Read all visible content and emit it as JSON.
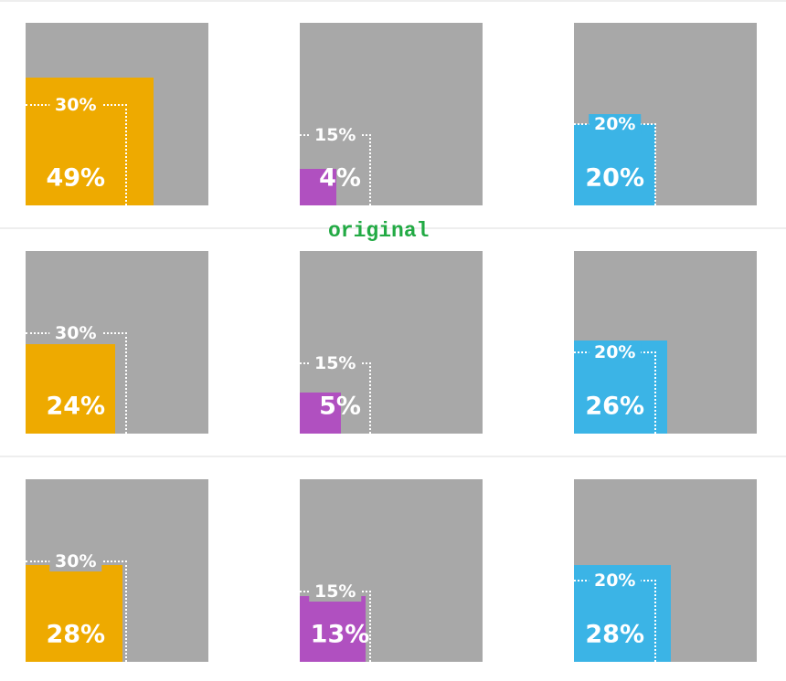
{
  "caption": "original",
  "colors": {
    "background_square": "#a8a8a8",
    "orange": "#eeaa00",
    "purple": "#b050c0",
    "blue": "#3bb4e6"
  },
  "chart_data": {
    "type": "area-square-comparison",
    "rows": [
      [
        {
          "value": 49,
          "reference": 30,
          "color": "#eeaa00",
          "value_label": "49%",
          "reference_label": "30%"
        },
        {
          "value": 4,
          "reference": 15,
          "color": "#b050c0",
          "value_label": "4%",
          "reference_label": "15%"
        },
        {
          "value": 20,
          "reference": 20,
          "color": "#3bb4e6",
          "value_label": "20%",
          "reference_label": "20%"
        }
      ],
      [
        {
          "value": 24,
          "reference": 30,
          "color": "#eeaa00",
          "value_label": "24%",
          "reference_label": "30%"
        },
        {
          "value": 5,
          "reference": 15,
          "color": "#b050c0",
          "value_label": "5%",
          "reference_label": "15%"
        },
        {
          "value": 26,
          "reference": 20,
          "color": "#3bb4e6",
          "value_label": "26%",
          "reference_label": "20%"
        }
      ],
      [
        {
          "value": 28,
          "reference": 30,
          "color": "#eeaa00",
          "value_label": "28%",
          "reference_label": "30%"
        },
        {
          "value": 13,
          "reference": 15,
          "color": "#b050c0",
          "value_label": "13%",
          "reference_label": "15%"
        },
        {
          "value": 28,
          "reference": 20,
          "color": "#3bb4e6",
          "value_label": "28%",
          "reference_label": "20%"
        }
      ]
    ]
  }
}
